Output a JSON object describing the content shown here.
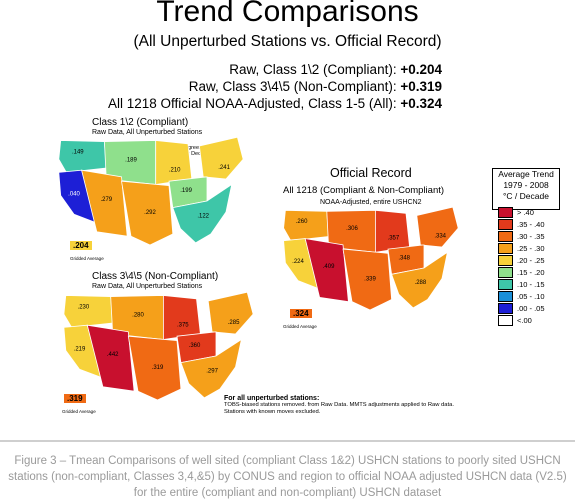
{
  "title": "Trend Comparisons",
  "subtitle": "(All Unperturbed Stations vs. Official Record)",
  "summary": [
    {
      "label": "Raw, Class 1\\2 (Compliant): ",
      "value": "+0.204"
    },
    {
      "label": "Raw, Class 3\\4\\5 (Non-Compliant): ",
      "value": "+0.319"
    },
    {
      "label": "All 1218 Official NOAA-Adjusted, Class 1-5 (All): ",
      "value": "+0.324"
    }
  ],
  "maps": {
    "compliant": {
      "title": "Class 1\\2 (Compliant)",
      "sub": "Raw Data, All Unperturbed Stations",
      "annotation": "Degrees Celsius Per Decade",
      "average": ".204",
      "average_caption": "Gridded Average"
    },
    "official": {
      "title": "Official Record",
      "sub": "All 1218 (Compliant & Non-Compliant)",
      "sub2": "NOAA-Adjusted, entire USHCN2",
      "average": ".324",
      "average_caption": "Gridded Average"
    },
    "noncompliant": {
      "title": "Class 3\\4\\5 (Non-Compliant)",
      "sub": "Raw Data, All Unperturbed Stations",
      "average": ".319",
      "average_caption": "Gridded Average"
    }
  },
  "chart_data": [
    {
      "type": "choropleth",
      "title": "Class 1\\2 (Compliant)",
      "regions": [
        {
          "region": "Northwest",
          "value": 0.149
        },
        {
          "region": "Northern Plains",
          "value": 0.189
        },
        {
          "region": "Upper Midwest",
          "value": 0.21
        },
        {
          "region": "Northeast",
          "value": 0.241
        },
        {
          "region": "West",
          "value": 0.04
        },
        {
          "region": "Southwest",
          "value": 0.279
        },
        {
          "region": "South",
          "value": 0.292
        },
        {
          "region": "Ohio Valley",
          "value": 0.199
        },
        {
          "region": "Southeast",
          "value": 0.122
        }
      ],
      "average": 0.204
    },
    {
      "type": "choropleth",
      "title": "Official Record",
      "regions": [
        {
          "region": "Northwest",
          "value": 0.26
        },
        {
          "region": "Northern Plains",
          "value": 0.306
        },
        {
          "region": "Upper Midwest",
          "value": 0.357
        },
        {
          "region": "Northeast",
          "value": 0.334
        },
        {
          "region": "West",
          "value": 0.224
        },
        {
          "region": "Southwest",
          "value": 0.409
        },
        {
          "region": "South",
          "value": 0.339
        },
        {
          "region": "Ohio Valley",
          "value": 0.348
        },
        {
          "region": "Southeast",
          "value": 0.288
        }
      ],
      "average": 0.324
    },
    {
      "type": "choropleth",
      "title": "Class 3\\4\\5 (Non-Compliant)",
      "regions": [
        {
          "region": "Northwest",
          "value": 0.23
        },
        {
          "region": "Northern Plains",
          "value": 0.28
        },
        {
          "region": "Upper Midwest",
          "value": 0.375
        },
        {
          "region": "Northeast",
          "value": 0.285
        },
        {
          "region": "West",
          "value": 0.219
        },
        {
          "region": "Southwest",
          "value": 0.442
        },
        {
          "region": "South",
          "value": 0.319
        },
        {
          "region": "Ohio Valley",
          "value": 0.36
        },
        {
          "region": "Southeast",
          "value": 0.297
        }
      ],
      "average": 0.319
    }
  ],
  "legend": {
    "title_lines": [
      "Average Trend",
      "1979 - 2008",
      "°C / Decade"
    ],
    "items": [
      {
        "label": "> .40",
        "color": "#c8102e"
      },
      {
        "label": ".35 - .40",
        "color": "#e23a1c"
      },
      {
        "label": ".30 - .35",
        "color": "#f06a14"
      },
      {
        "label": ".25 - .30",
        "color": "#f5a01a"
      },
      {
        "label": ".20 - .25",
        "color": "#f7d23a"
      },
      {
        "label": ".15 - .20",
        "color": "#8fe08c"
      },
      {
        "label": ".10 - .15",
        "color": "#3ec6a8"
      },
      {
        "label": ".05 - .10",
        "color": "#1a8fd8"
      },
      {
        "label": ".00 - .05",
        "color": "#1d1fd6"
      },
      {
        "label": "<.00",
        "color": "#ffffff"
      }
    ]
  },
  "notes": {
    "heading": "For all unperturbed stations:",
    "lines": [
      "TOBS-biased stations removed. from Raw Data. MMTS adjustments applied to Raw data.",
      "Stations with known moves excluded."
    ]
  },
  "caption": "Figure 3 – Tmean Comparisons of well sited (compliant Class 1&2) USHCN stations to poorly sited USHCN stations (non-compliant, Classes 3,4,&5) by CONUS and region to official NOAA adjusted USHCN data (V2.5) for the entire (compliant and non-compliant) USHCN dataset"
}
